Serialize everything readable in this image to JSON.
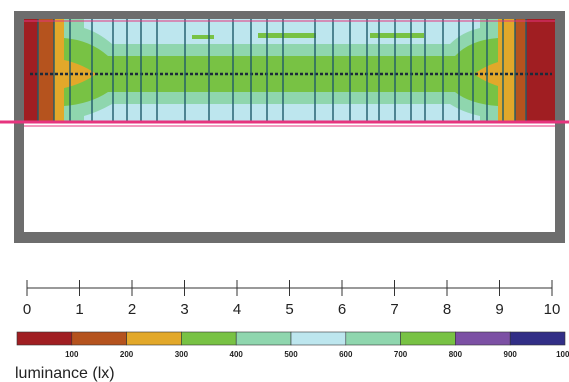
{
  "diagram": {
    "type": "illuminance-heatmap-plan",
    "legend": {
      "label": "luminance (lx)",
      "tick_values": [
        "100",
        "200",
        "300",
        "400",
        "500",
        "600",
        "700",
        "800",
        "900",
        "1000"
      ],
      "colors": [
        "#a01e22",
        "#b5531e",
        "#e2a82a",
        "#78c244",
        "#8fd6ae",
        "#bde6ee",
        "#8fd6ae",
        "#78c244",
        "#7c50a4",
        "#322e86"
      ]
    },
    "scale": {
      "ticks": [
        "0",
        "1",
        "2",
        "3",
        "4",
        "5",
        "6",
        "7",
        "8",
        "9",
        "10"
      ]
    },
    "heat_colors": {
      "red": "#a01e22",
      "brown": "#b5531e",
      "orange": "#e2a82a",
      "green": "#78c244",
      "mint": "#8fd6ae",
      "lightblue": "#bde6ee"
    },
    "line_colors": {
      "magenta": "#e6347e",
      "dark": "#1c2a3a",
      "frame": "#6d6d6d"
    }
  }
}
